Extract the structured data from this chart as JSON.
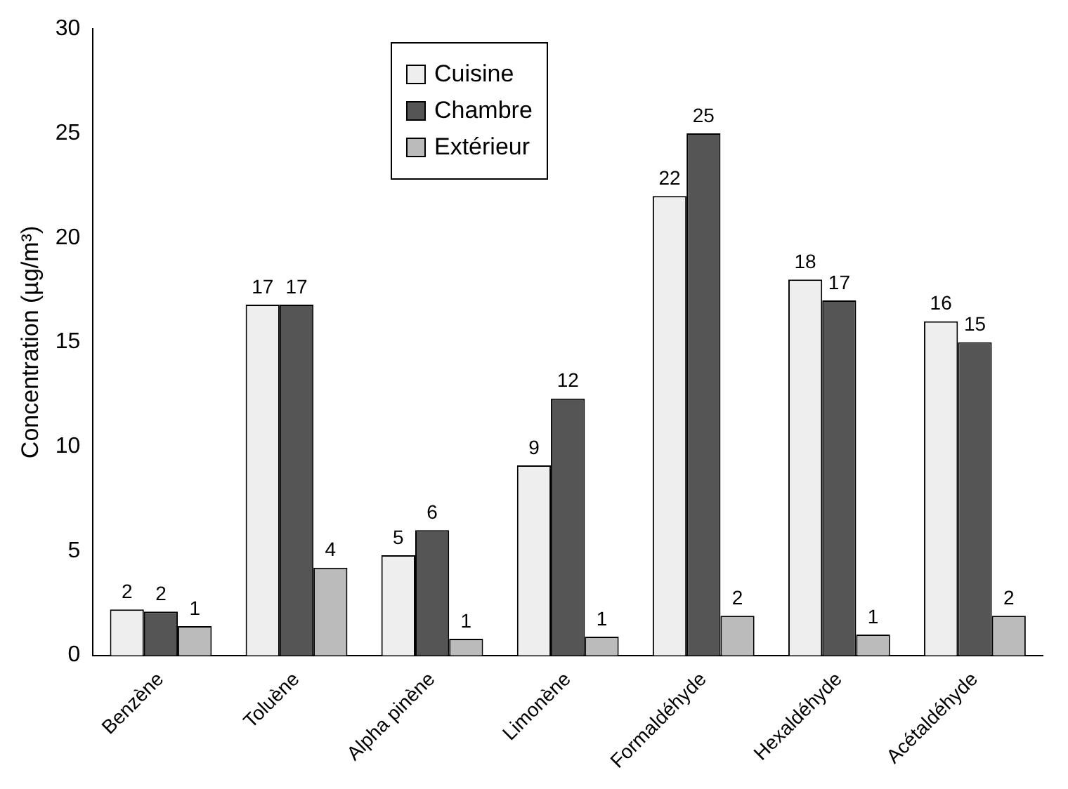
{
  "chart_data": {
    "type": "bar",
    "ylabel": "Concentration (µg/m³)",
    "categories": [
      "Benzène",
      "Toluène",
      "Alpha pinène",
      "Limonène",
      "Formaldéhyde",
      "Hexaldéhyde",
      "Acétaldéhyde"
    ],
    "series": [
      {
        "name": "Cuisine",
        "color": "#eeeeee",
        "values": [
          2.2,
          16.8,
          4.8,
          9.1,
          22,
          18,
          16
        ],
        "value_labels": [
          "2",
          "17",
          "5",
          "9",
          "22",
          "18",
          "16"
        ]
      },
      {
        "name": "Chambre",
        "color": "#555555",
        "values": [
          2.1,
          16.8,
          6.0,
          12.3,
          25,
          17,
          15
        ],
        "value_labels": [
          "2",
          "17",
          "6",
          "12",
          "25",
          "17",
          "15"
        ]
      },
      {
        "name": "Extérieur",
        "color": "#bbbbbb",
        "values": [
          1.4,
          4.2,
          0.8,
          0.9,
          1.9,
          1.0,
          1.9
        ],
        "value_labels": [
          "1",
          "4",
          "1",
          "1",
          "2",
          "1",
          "2"
        ]
      }
    ],
    "ylim": [
      0,
      30
    ],
    "yticks": [
      0,
      5,
      10,
      15,
      20,
      25,
      30
    ],
    "grid": false,
    "legend": "top left"
  }
}
